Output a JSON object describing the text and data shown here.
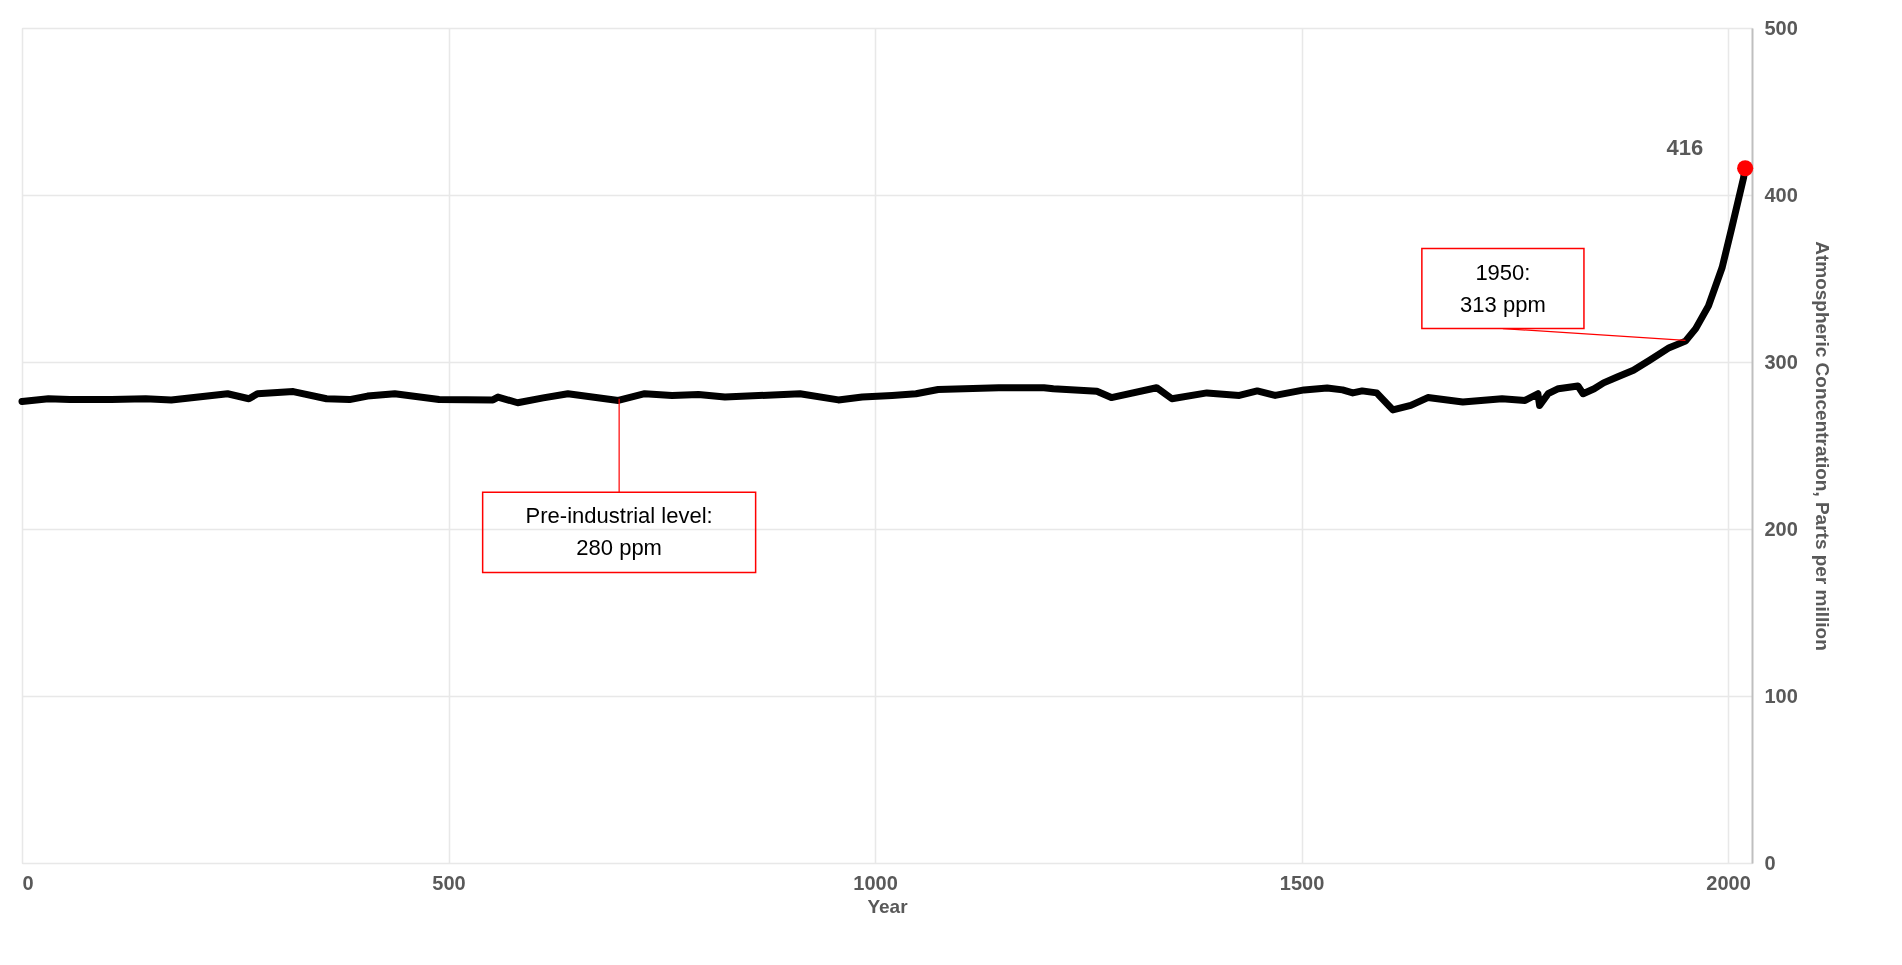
{
  "chart_data": {
    "type": "line",
    "xlabel": "Year",
    "ylabel": "Atmospheric Concentration, Parts per million",
    "xlim": [
      0,
      2028
    ],
    "xticks": [
      0,
      500,
      1000,
      1500,
      2000
    ],
    "ylim": [
      0,
      500
    ],
    "yticks": [
      0,
      100,
      200,
      300,
      400,
      500
    ],
    "grid": true,
    "series": [
      {
        "color": "#000000",
        "x": [
          0,
          31,
          56,
          105,
          145,
          175,
          241,
          266,
          276,
          318,
          357,
          384,
          405,
          437,
          489,
          552,
          558,
          581,
          611,
          640,
          699,
          730,
          762,
          793,
          824,
          912,
          957,
          985,
          1020,
          1048,
          1074,
          1145,
          1198,
          1209,
          1260,
          1277,
          1330,
          1348,
          1389,
          1427,
          1448,
          1469,
          1503,
          1530,
          1548,
          1560,
          1571,
          1588,
          1607,
          1628,
          1648,
          1689,
          1735,
          1762,
          1777,
          1779,
          1789,
          1801,
          1824,
          1830,
          1843,
          1854,
          1870,
          1889,
          1908,
          1931,
          1950,
          1962,
          1977,
          1993,
          2004,
          2018,
          2020
        ],
        "values": [
          276.4,
          278,
          277.5,
          277.5,
          278,
          277.3,
          281,
          278,
          281,
          282.3,
          278,
          277.5,
          279.6,
          281,
          277.5,
          277.3,
          279,
          275.6,
          278.5,
          281,
          277,
          281,
          280,
          280.5,
          279,
          281,
          277.3,
          279,
          280,
          281,
          283.5,
          284.6,
          284.6,
          284,
          282.5,
          278.7,
          284.6,
          278,
          281.5,
          280,
          282.7,
          280,
          283.3,
          284.4,
          283.3,
          281.5,
          282.7,
          281.5,
          271.3,
          274,
          278.7,
          276,
          278,
          277,
          281,
          274,
          281,
          284,
          285.6,
          281,
          284,
          287.5,
          291,
          295,
          301,
          308.6,
          312.5,
          320,
          333.6,
          356.6,
          379.7,
          410,
          416
        ]
      },
      {
        "type": "scatter",
        "color": "#ff0000",
        "x": [
          2020
        ],
        "values": [
          416
        ],
        "value_labels": [
          "416"
        ]
      }
    ],
    "annotations": [
      {
        "text": "Pre-industrial level:\n280 ppm",
        "x": 700,
        "y": 278
      },
      {
        "text": "1950:\n313 ppm",
        "x": 1950,
        "y": 313
      }
    ]
  }
}
